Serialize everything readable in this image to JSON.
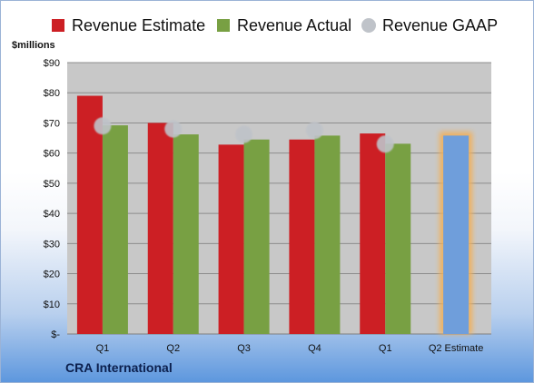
{
  "colors": {
    "estimate": "#cc1f24",
    "actual": "#78a043",
    "gaap": "#bfc3c9",
    "forecast": "#6f9edb",
    "forecast_glow": "#f2b05a"
  },
  "legend": {
    "estimate": "Revenue Estimate",
    "actual": "Revenue Actual",
    "gaap": "Revenue GAAP"
  },
  "unit_label": "$millions",
  "company": "CRA International",
  "chart_data": {
    "type": "bar",
    "categories": [
      "Q1",
      "Q2",
      "Q3",
      "Q4",
      "Q1",
      "Q2 Estimate"
    ],
    "ylim": [
      0,
      90
    ],
    "yticks": [
      {
        "value": 0,
        "label": "$-"
      },
      {
        "value": 10,
        "label": "$10"
      },
      {
        "value": 20,
        "label": "$20"
      },
      {
        "value": 30,
        "label": "$30"
      },
      {
        "value": 40,
        "label": "$40"
      },
      {
        "value": 50,
        "label": "$50"
      },
      {
        "value": 60,
        "label": "$60"
      },
      {
        "value": 70,
        "label": "$70"
      },
      {
        "value": 80,
        "label": "$80"
      },
      {
        "value": 90,
        "label": "$90"
      }
    ],
    "series": [
      {
        "name": "Revenue Estimate",
        "values": [
          79,
          70,
          62.8,
          64.5,
          66.5,
          null
        ]
      },
      {
        "name": "Revenue Actual",
        "values": [
          69.2,
          66.2,
          64.5,
          65.8,
          63.1,
          65.8
        ]
      },
      {
        "name": "Revenue GAAP",
        "values": [
          69,
          68,
          66.2,
          67.5,
          63.0,
          null
        ]
      }
    ],
    "grid": true,
    "legend_position": "top"
  }
}
